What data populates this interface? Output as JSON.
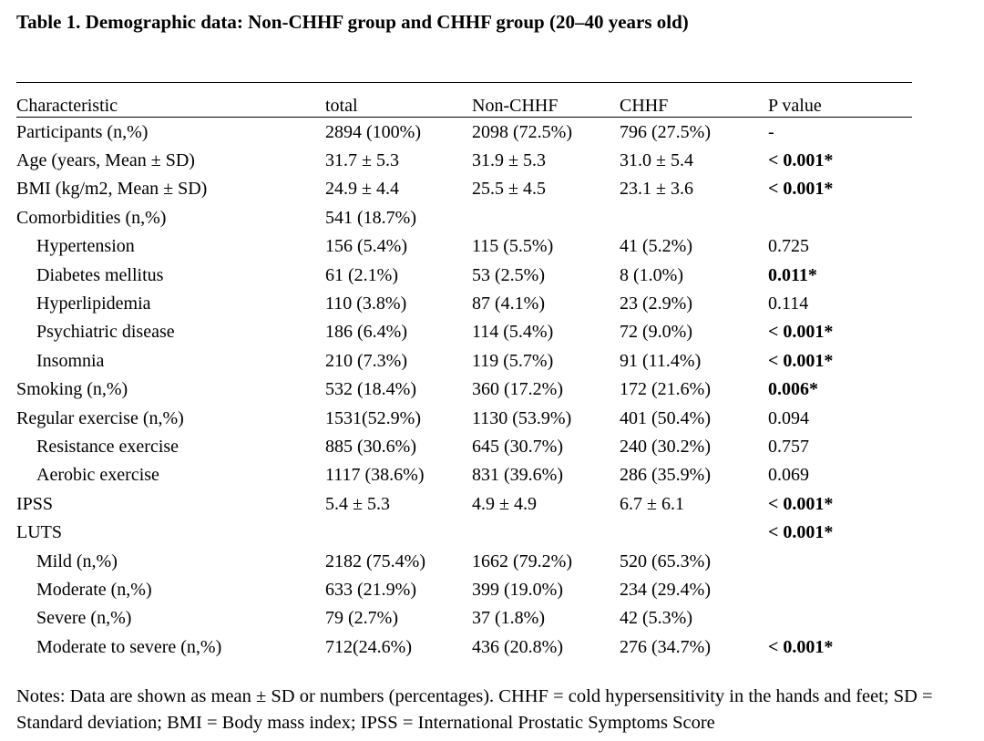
{
  "title": "Table 1. Demographic data: Non-CHHF group and CHHF group (20–40 years old)",
  "columns": [
    "Characteristic",
    "total",
    "Non-CHHF",
    "CHHF",
    "P value"
  ],
  "rows": [
    {
      "label": "Participants (n,%)",
      "total": "2894 (100%)",
      "non_chhf": "2098 (72.5%)",
      "chhf": "796 (27.5%)",
      "p": "-",
      "sub": false,
      "p_bold": false
    },
    {
      "label": "Age (years, Mean ± SD)",
      "total": "31.7 ± 5.3",
      "non_chhf": "31.9 ± 5.3",
      "chhf": "31.0 ± 5.4",
      "p": "< 0.001*",
      "sub": false,
      "p_bold": true
    },
    {
      "label": "BMI (kg/m2, Mean ± SD)",
      "total": "24.9 ± 4.4",
      "non_chhf": "25.5 ± 4.5",
      "chhf": "23.1 ± 3.6",
      "p": "< 0.001*",
      "sub": false,
      "p_bold": true
    },
    {
      "label": "Comorbidities (n,%)",
      "total": "541 (18.7%)",
      "non_chhf": "",
      "chhf": "",
      "p": "",
      "sub": false,
      "p_bold": false
    },
    {
      "label": "Hypertension",
      "total": "156 (5.4%)",
      "non_chhf": "115 (5.5%)",
      "chhf": "41 (5.2%)",
      "p": "0.725",
      "sub": true,
      "p_bold": false
    },
    {
      "label": "Diabetes mellitus",
      "total": "61 (2.1%)",
      "non_chhf": "53 (2.5%)",
      "chhf": "8 (1.0%)",
      "p": "0.011*",
      "sub": true,
      "p_bold": true
    },
    {
      "label": "Hyperlipidemia",
      "total": "110 (3.8%)",
      "non_chhf": "87 (4.1%)",
      "chhf": "23 (2.9%)",
      "p": "0.114",
      "sub": true,
      "p_bold": false
    },
    {
      "label": "Psychiatric  disease",
      "total": "186 (6.4%)",
      "non_chhf": "114 (5.4%)",
      "chhf": "72 (9.0%)",
      "p": "< 0.001*",
      "sub": true,
      "p_bold": true
    },
    {
      "label": "Insomnia",
      "total": "210 (7.3%)",
      "non_chhf": "119 (5.7%)",
      "chhf": "91 (11.4%)",
      "p": "< 0.001*",
      "sub": true,
      "p_bold": true
    },
    {
      "label": "Smoking (n,%)",
      "total": "532 (18.4%)",
      "non_chhf": "360 (17.2%)",
      "chhf": "172 (21.6%)",
      "p": "0.006*",
      "sub": false,
      "p_bold": true
    },
    {
      "label": "Regular exercise (n,%)",
      "total": "1531(52.9%)",
      "non_chhf": "1130 (53.9%)",
      "chhf": "401 (50.4%)",
      "p": "0.094",
      "sub": false,
      "p_bold": false
    },
    {
      "label": "Resistance exercise",
      "total": "885 (30.6%)",
      "non_chhf": "645 (30.7%)",
      "chhf": "240 (30.2%)",
      "p": "0.757",
      "sub": true,
      "p_bold": false
    },
    {
      "label": "Aerobic exercise",
      "total": "1117 (38.6%)",
      "non_chhf": "831 (39.6%)",
      "chhf": "286 (35.9%)",
      "p": "0.069",
      "sub": true,
      "p_bold": false
    },
    {
      "label": "IPSS",
      "total": "5.4 ± 5.3",
      "non_chhf": "4.9 ± 4.9",
      "chhf": "6.7 ± 6.1",
      "p": "< 0.001*",
      "sub": false,
      "p_bold": true
    },
    {
      "label": "LUTS",
      "total": "",
      "non_chhf": "",
      "chhf": "",
      "p": "< 0.001*",
      "sub": false,
      "p_bold": true
    },
    {
      "label": "Mild (n,%)",
      "total": "2182 (75.4%)",
      "non_chhf": "1662 (79.2%)",
      "chhf": "520 (65.3%)",
      "p": "",
      "sub": true,
      "p_bold": false
    },
    {
      "label": "Moderate (n,%)",
      "total": "633 (21.9%)",
      "non_chhf": "399 (19.0%)",
      "chhf": "234 (29.4%)",
      "p": "",
      "sub": true,
      "p_bold": false
    },
    {
      "label": "Severe (n,%)",
      "total": "79 (2.7%)",
      "non_chhf": "37 (1.8%)",
      "chhf": "42 (5.3%)",
      "p": "",
      "sub": true,
      "p_bold": false
    },
    {
      "label": "Moderate to severe (n,%)",
      "total": "712(24.6%)",
      "non_chhf": "436 (20.8%)",
      "chhf": "276 (34.7%)",
      "p": "< 0.001*",
      "sub": true,
      "p_bold": true
    }
  ],
  "notes": "Notes: Data are shown as mean ± SD or numbers (percentages). CHHF = cold hypersensitivity in the hands and feet; SD = Standard deviation; BMI = Body mass index; IPSS = International Prostatic Symptoms Score"
}
